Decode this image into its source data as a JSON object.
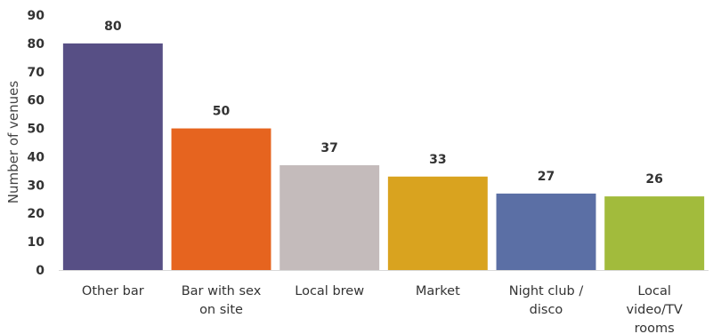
{
  "chart_data": {
    "type": "bar",
    "categories": [
      [
        "Other bar"
      ],
      [
        "Bar with sex",
        "on site"
      ],
      [
        "Local brew"
      ],
      [
        "Market"
      ],
      [
        "Night club /",
        "disco"
      ],
      [
        "Local",
        "video/TV",
        "rooms"
      ]
    ],
    "values": [
      80,
      50,
      37,
      33,
      27,
      26
    ],
    "colors": [
      "#574f85",
      "#e6641f",
      "#c4bbbb",
      "#d9a31f",
      "#5b6fa5",
      "#a2bb3c"
    ],
    "ylabel": "Number of venues",
    "ylim": [
      0,
      90
    ],
    "yticks": [
      0,
      10,
      20,
      30,
      40,
      50,
      60,
      70,
      80,
      90
    ],
    "grid": false,
    "data_labels": true
  }
}
